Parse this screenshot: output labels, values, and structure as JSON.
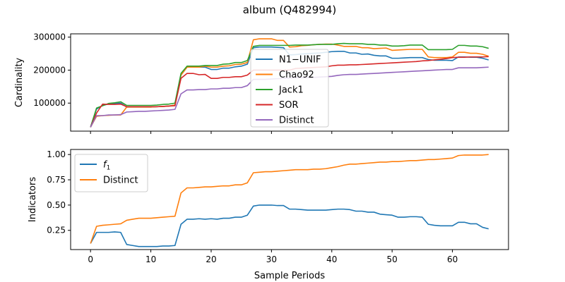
{
  "figure": {
    "title": "album (Q482994)"
  },
  "colors": {
    "blue": "#1f77b4",
    "orange": "#ff7f0e",
    "green": "#2ca02c",
    "red": "#d62728",
    "purple": "#9467bd"
  },
  "chart_data": [
    {
      "type": "line",
      "ylabel": "Cardinality",
      "xlim": [
        -3.3,
        69.3
      ],
      "ylim": [
        15000,
        310000
      ],
      "yticks": [
        100000,
        200000,
        300000
      ],
      "ytick_labels": [
        "100000",
        "200000",
        "300000"
      ],
      "xticks": [
        0,
        10,
        20,
        30,
        40,
        50,
        60
      ],
      "show_xtick_labels": false,
      "legend": "center",
      "series": [
        {
          "name": "N1−UNIF",
          "color": "#1f77b4",
          "x": [
            0,
            1,
            2,
            3,
            4,
            5,
            6,
            7,
            8,
            9,
            10,
            11,
            12,
            13,
            14,
            15,
            16,
            17,
            18,
            19,
            20,
            21,
            22,
            23,
            24,
            25,
            26,
            27,
            28,
            29,
            30,
            31,
            32,
            33,
            34,
            35,
            36,
            37,
            38,
            39,
            40,
            41,
            42,
            43,
            44,
            45,
            46,
            47,
            48,
            49,
            50,
            51,
            52,
            53,
            54,
            55,
            56,
            57,
            58,
            59,
            60,
            61,
            62,
            63,
            64,
            65,
            66
          ],
          "y": [
            27000,
            82000,
            93000,
            97000,
            99000,
            100000,
            88000,
            88000,
            88000,
            88000,
            88000,
            89000,
            90000,
            91000,
            94000,
            185000,
            209000,
            209000,
            209000,
            209000,
            202000,
            202000,
            206000,
            206000,
            210000,
            212000,
            218000,
            268000,
            270000,
            270000,
            270000,
            269000,
            268000,
            246000,
            247000,
            249000,
            250000,
            251000,
            252000,
            254000,
            256000,
            257000,
            257000,
            252000,
            252000,
            248000,
            249000,
            245000,
            243000,
            243000,
            236000,
            236000,
            237000,
            238000,
            238000,
            238000,
            232000,
            230000,
            230000,
            230000,
            229000,
            240000,
            240000,
            239000,
            239000,
            236000,
            231000
          ]
        },
        {
          "name": "Chao92",
          "color": "#ff7f0e",
          "x": [
            0,
            1,
            2,
            3,
            4,
            5,
            6,
            7,
            8,
            9,
            10,
            11,
            12,
            13,
            14,
            15,
            16,
            17,
            18,
            19,
            20,
            21,
            22,
            23,
            24,
            25,
            26,
            27,
            28,
            29,
            30,
            31,
            32,
            33,
            34,
            35,
            36,
            37,
            38,
            39,
            40,
            41,
            42,
            43,
            44,
            45,
            46,
            47,
            48,
            49,
            50,
            51,
            52,
            53,
            54,
            55,
            56,
            57,
            58,
            59,
            60,
            61,
            62,
            63,
            64,
            65,
            66
          ],
          "y": [
            27000,
            60000,
            62000,
            63000,
            64000,
            64000,
            88000,
            88000,
            88000,
            88000,
            88000,
            89000,
            90000,
            91000,
            94000,
            185000,
            209000,
            209000,
            209000,
            212000,
            209000,
            209000,
            212000,
            213000,
            217000,
            218000,
            223000,
            292000,
            295000,
            295000,
            295000,
            290000,
            290000,
            270000,
            271000,
            274000,
            275000,
            277000,
            278000,
            279000,
            279000,
            276000,
            272000,
            272000,
            272000,
            268000,
            268000,
            265000,
            266000,
            267000,
            260000,
            261000,
            262000,
            263000,
            263000,
            263000,
            240000,
            238000,
            238000,
            238000,
            240000,
            254000,
            254000,
            251000,
            251000,
            248000,
            242000
          ]
        },
        {
          "name": "Jack1",
          "color": "#2ca02c",
          "x": [
            0,
            1,
            2,
            3,
            4,
            5,
            6,
            7,
            8,
            9,
            10,
            11,
            12,
            13,
            14,
            15,
            16,
            17,
            18,
            19,
            20,
            21,
            22,
            23,
            24,
            25,
            26,
            27,
            28,
            29,
            30,
            31,
            32,
            33,
            34,
            35,
            36,
            37,
            38,
            39,
            40,
            41,
            42,
            43,
            44,
            45,
            46,
            47,
            48,
            49,
            50,
            51,
            52,
            53,
            54,
            55,
            56,
            57,
            58,
            59,
            60,
            61,
            62,
            63,
            64,
            65,
            66
          ],
          "y": [
            27000,
            85000,
            92000,
            99000,
            101000,
            104000,
            93000,
            93000,
            93000,
            93000,
            93000,
            94000,
            96000,
            97000,
            100000,
            190000,
            212000,
            212000,
            212000,
            214000,
            214000,
            214000,
            218000,
            219000,
            223000,
            223000,
            229000,
            272000,
            275000,
            275000,
            275000,
            275000,
            275000,
            275000,
            276000,
            276000,
            276000,
            277000,
            278000,
            278000,
            278000,
            280000,
            281000,
            280000,
            280000,
            280000,
            278000,
            278000,
            276000,
            276000,
            273000,
            273000,
            274000,
            276000,
            276000,
            276000,
            262000,
            262000,
            262000,
            262000,
            263000,
            275000,
            275000,
            273000,
            273000,
            271000,
            266000
          ]
        },
        {
          "name": "SOR",
          "color": "#d62728",
          "x": [
            0,
            1,
            2,
            3,
            4,
            5,
            6,
            7,
            8,
            9,
            10,
            11,
            12,
            13,
            14,
            15,
            16,
            17,
            18,
            19,
            20,
            21,
            22,
            23,
            24,
            25,
            26,
            27,
            28,
            29,
            30,
            31,
            32,
            33,
            34,
            35,
            36,
            37,
            38,
            39,
            40,
            41,
            42,
            43,
            44,
            45,
            46,
            47,
            48,
            49,
            50,
            51,
            52,
            53,
            54,
            55,
            56,
            57,
            58,
            59,
            60,
            61,
            62,
            63,
            64,
            65,
            66
          ],
          "y": [
            27000,
            70000,
            97000,
            96000,
            96000,
            97000,
            89000,
            89000,
            89000,
            89000,
            89000,
            89000,
            90000,
            91000,
            92000,
            175000,
            190000,
            190000,
            186000,
            187000,
            175000,
            175000,
            178000,
            178000,
            180000,
            180000,
            185000,
            200000,
            200000,
            200000,
            200000,
            200000,
            200000,
            200000,
            205000,
            206000,
            207000,
            208000,
            209000,
            210000,
            213000,
            215000,
            215000,
            216000,
            216000,
            217000,
            218000,
            219000,
            220000,
            221000,
            222000,
            223000,
            224000,
            225000,
            226000,
            228000,
            229000,
            231000,
            233000,
            235000,
            238000,
            239000,
            239000,
            240000,
            240000,
            240000,
            241000
          ]
        },
        {
          "name": "Distinct",
          "color": "#9467bd",
          "x": [
            0,
            1,
            2,
            3,
            4,
            5,
            6,
            7,
            8,
            9,
            10,
            11,
            12,
            13,
            14,
            15,
            16,
            17,
            18,
            19,
            20,
            21,
            22,
            23,
            24,
            25,
            26,
            27,
            28,
            29,
            30,
            31,
            32,
            33,
            34,
            35,
            36,
            37,
            38,
            39,
            40,
            41,
            42,
            43,
            44,
            45,
            46,
            47,
            48,
            49,
            50,
            51,
            52,
            53,
            54,
            55,
            56,
            57,
            58,
            59,
            60,
            61,
            62,
            63,
            64,
            65,
            66
          ],
          "y": [
            27000,
            62000,
            62000,
            64000,
            64000,
            65000,
            73000,
            74000,
            75000,
            75000,
            76000,
            77000,
            78000,
            79000,
            81000,
            128000,
            140000,
            140000,
            141000,
            141000,
            143000,
            143000,
            145000,
            145000,
            147000,
            147000,
            153000,
            172000,
            172000,
            172000,
            173000,
            174000,
            175000,
            176000,
            177000,
            177000,
            177000,
            178000,
            179000,
            180000,
            181000,
            184000,
            186000,
            187000,
            187000,
            188000,
            189000,
            190000,
            191000,
            192000,
            193000,
            194000,
            195000,
            196000,
            197000,
            198000,
            199000,
            200000,
            201000,
            202000,
            202000,
            207000,
            207000,
            207000,
            207000,
            208000,
            209000
          ]
        }
      ]
    },
    {
      "type": "line",
      "xlabel": "Sample Periods",
      "ylabel": "Indicators",
      "xlim": [
        -3.3,
        69.3
      ],
      "ylim": [
        0.06,
        1.05
      ],
      "yticks": [
        0.25,
        0.5,
        0.75,
        1.0
      ],
      "ytick_labels": [
        "0.25",
        "0.50",
        "0.75",
        "1.00"
      ],
      "xticks": [
        0,
        10,
        20,
        30,
        40,
        50,
        60
      ],
      "xtick_labels": [
        "0",
        "10",
        "20",
        "30",
        "40",
        "50",
        "60"
      ],
      "legend": "upper-left",
      "series": [
        {
          "name": "f1",
          "color": "#1f77b4",
          "x": [
            0,
            1,
            2,
            3,
            4,
            5,
            6,
            7,
            8,
            9,
            10,
            11,
            12,
            13,
            14,
            15,
            16,
            17,
            18,
            19,
            20,
            21,
            22,
            23,
            24,
            25,
            26,
            27,
            28,
            29,
            30,
            31,
            32,
            33,
            34,
            35,
            36,
            37,
            38,
            39,
            40,
            41,
            42,
            43,
            44,
            45,
            46,
            47,
            48,
            49,
            50,
            51,
            52,
            53,
            54,
            55,
            56,
            57,
            58,
            59,
            60,
            61,
            62,
            63,
            64,
            65,
            66
          ],
          "y": [
            0.12,
            0.23,
            0.23,
            0.23,
            0.235,
            0.23,
            0.11,
            0.1,
            0.09,
            0.09,
            0.09,
            0.09,
            0.095,
            0.095,
            0.1,
            0.31,
            0.36,
            0.36,
            0.365,
            0.36,
            0.365,
            0.36,
            0.37,
            0.37,
            0.38,
            0.38,
            0.4,
            0.49,
            0.5,
            0.5,
            0.5,
            0.495,
            0.495,
            0.46,
            0.46,
            0.455,
            0.45,
            0.45,
            0.45,
            0.45,
            0.455,
            0.46,
            0.46,
            0.455,
            0.44,
            0.44,
            0.43,
            0.43,
            0.41,
            0.405,
            0.4,
            0.38,
            0.38,
            0.385,
            0.385,
            0.38,
            0.31,
            0.3,
            0.295,
            0.295,
            0.295,
            0.33,
            0.33,
            0.315,
            0.315,
            0.28,
            0.265
          ]
        },
        {
          "name": "Distinct",
          "color": "#ff7f0e",
          "x": [
            0,
            1,
            2,
            3,
            4,
            5,
            6,
            7,
            8,
            9,
            10,
            11,
            12,
            13,
            14,
            15,
            16,
            17,
            18,
            19,
            20,
            21,
            22,
            23,
            24,
            25,
            26,
            27,
            28,
            29,
            30,
            31,
            32,
            33,
            34,
            35,
            36,
            37,
            38,
            39,
            40,
            41,
            42,
            43,
            44,
            45,
            46,
            47,
            48,
            49,
            50,
            51,
            52,
            53,
            54,
            55,
            56,
            57,
            58,
            59,
            60,
            61,
            62,
            63,
            64,
            65,
            66
          ],
          "y": [
            0.12,
            0.29,
            0.3,
            0.305,
            0.31,
            0.315,
            0.35,
            0.36,
            0.37,
            0.37,
            0.37,
            0.375,
            0.38,
            0.385,
            0.39,
            0.62,
            0.67,
            0.67,
            0.675,
            0.68,
            0.68,
            0.685,
            0.69,
            0.69,
            0.7,
            0.7,
            0.72,
            0.82,
            0.825,
            0.83,
            0.83,
            0.835,
            0.84,
            0.845,
            0.85,
            0.85,
            0.85,
            0.855,
            0.855,
            0.86,
            0.87,
            0.88,
            0.895,
            0.905,
            0.905,
            0.91,
            0.915,
            0.92,
            0.925,
            0.925,
            0.93,
            0.93,
            0.935,
            0.94,
            0.94,
            0.945,
            0.95,
            0.95,
            0.955,
            0.96,
            0.965,
            0.99,
            0.995,
            0.995,
            0.995,
            0.995,
            1.0
          ]
        }
      ]
    }
  ]
}
